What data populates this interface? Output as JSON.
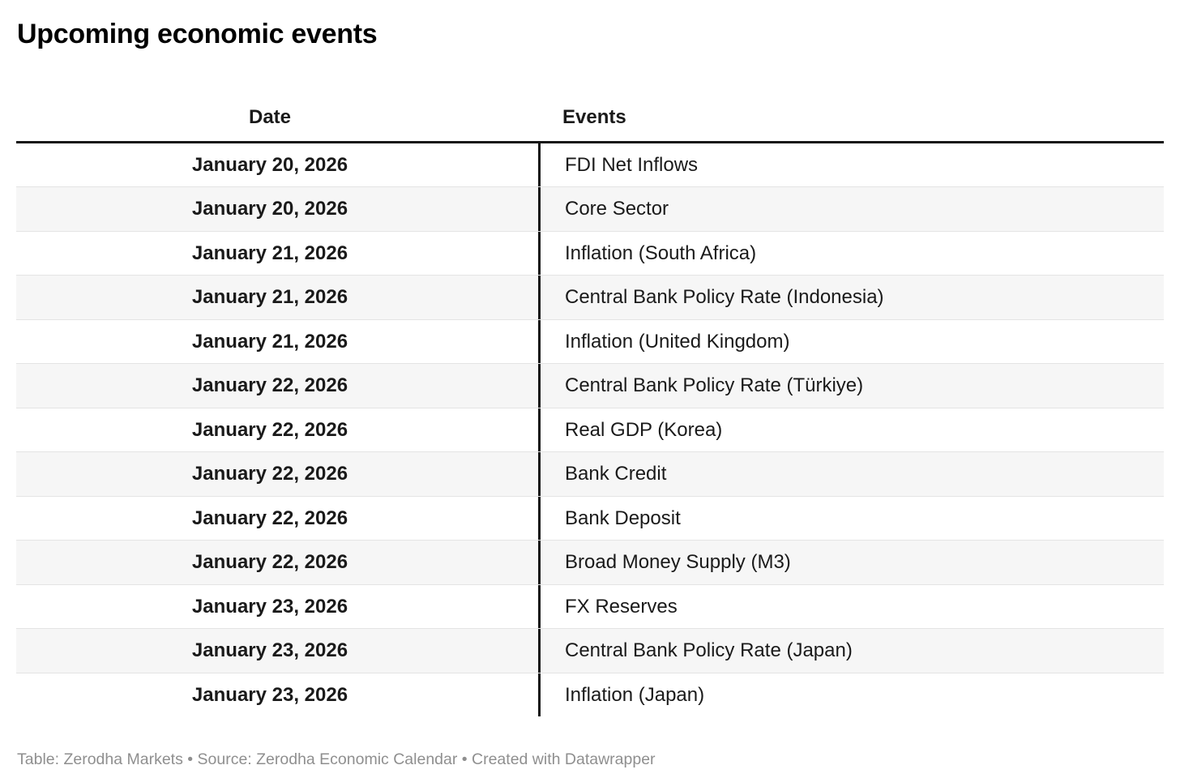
{
  "title": "Upcoming economic events",
  "chart_data": {
    "type": "table",
    "title": "Upcoming economic events",
    "columns": [
      "Date",
      "Events"
    ],
    "rows": [
      [
        "January 20, 2026",
        "FDI Net Inflows"
      ],
      [
        "January 20, 2026",
        "Core Sector"
      ],
      [
        "January 21, 2026",
        "Inflation (South Africa)"
      ],
      [
        "January 21, 2026",
        "Central Bank Policy Rate (Indonesia)"
      ],
      [
        "January 21, 2026",
        "Inflation (United Kingdom)"
      ],
      [
        "January 22, 2026",
        "Central Bank Policy Rate (Türkiye)"
      ],
      [
        "January 22, 2026",
        "Real GDP (Korea)"
      ],
      [
        "January 22, 2026",
        "Bank Credit"
      ],
      [
        "January 22, 2026",
        "Bank Deposit"
      ],
      [
        "January 22, 2026",
        "Broad Money Supply (M3)"
      ],
      [
        "January 23, 2026",
        "FX Reserves"
      ],
      [
        "January 23, 2026",
        "Central Bank Policy Rate (Japan)"
      ],
      [
        "January 23, 2026",
        "Inflation (Japan)"
      ]
    ],
    "layout": {
      "date_column_align": "center",
      "events_column_align": "left",
      "row_striping": true,
      "header_rule": true
    }
  },
  "footer": {
    "text": "Table: Zerodha Markets • Source: Zerodha Economic Calendar • Created with Datawrapper"
  },
  "colors": {
    "background": "#ffffff",
    "text": "#1a1a1a",
    "title": "#000000",
    "stripe": "#f6f6f6",
    "row_separator": "#e4e4e4",
    "header_rule": "#161616",
    "column_divider": "#161616",
    "footer_text": "#8f8f8f"
  }
}
